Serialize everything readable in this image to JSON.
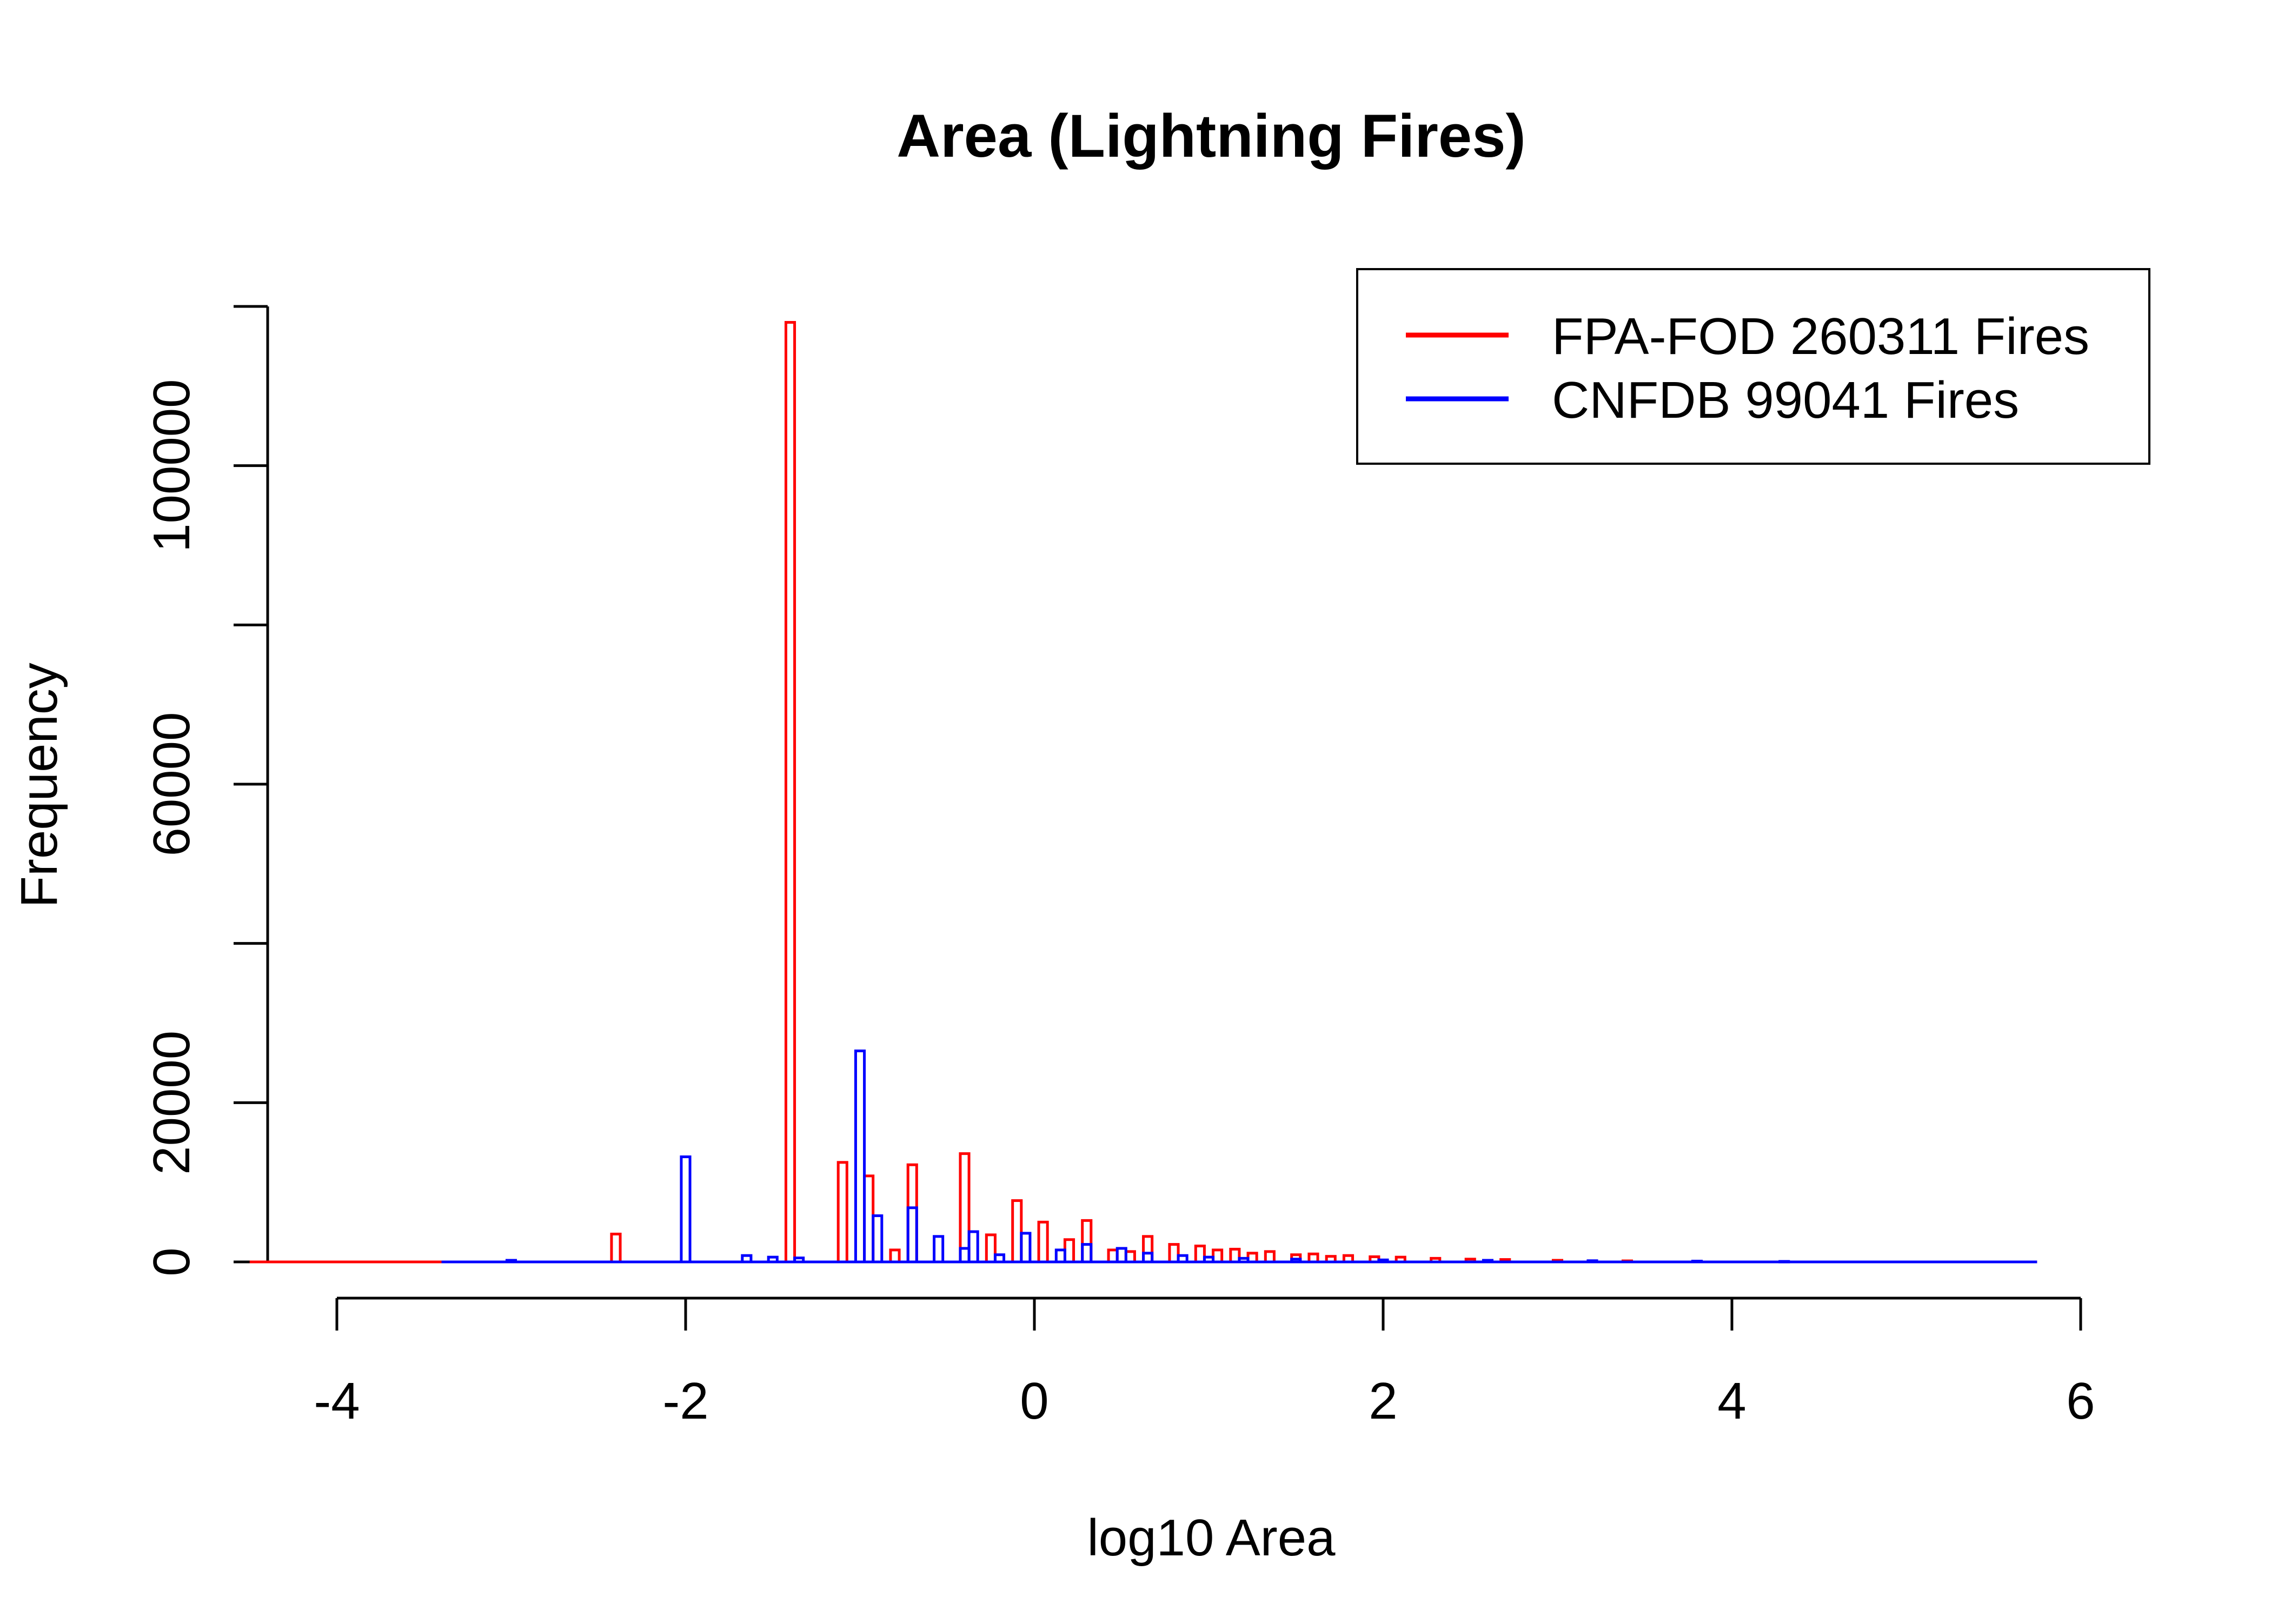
{
  "chart_data": {
    "type": "histogram",
    "title": "Area (Lightning Fires)",
    "xlabel": "log10 Area",
    "ylabel": "Frequency",
    "xlim": [
      -4.5,
      6
    ],
    "ylim": [
      0,
      120000
    ],
    "x_ticks": [
      {
        "value": -4,
        "label": "-4"
      },
      {
        "value": -2,
        "label": "-2"
      },
      {
        "value": 0,
        "label": "0"
      },
      {
        "value": 2,
        "label": "2"
      },
      {
        "value": 4,
        "label": "4"
      },
      {
        "value": 6,
        "label": "6"
      }
    ],
    "y_ticks": [
      {
        "value": 0,
        "label": "0"
      },
      {
        "value": 20000,
        "label": "20000"
      },
      {
        "value": 40000,
        "label": ""
      },
      {
        "value": 60000,
        "label": "60000"
      },
      {
        "value": 80000,
        "label": ""
      },
      {
        "value": 100000,
        "label": "100000"
      },
      {
        "value": 120000,
        "label": ""
      }
    ],
    "grid": false,
    "legend_position": "top-right",
    "bin_width": 0.05,
    "series": [
      {
        "name": "FPA-FOD 260311 Fires",
        "color": "#ff0000",
        "range": [
          -4.5,
          5.75
        ],
        "bars": [
          {
            "x": -2.4,
            "y": 3500
          },
          {
            "x": -1.4,
            "y": 118000
          },
          {
            "x": -1.1,
            "y": 12500
          },
          {
            "x": -0.95,
            "y": 10800
          },
          {
            "x": -0.8,
            "y": 1500
          },
          {
            "x": -0.7,
            "y": 12200
          },
          {
            "x": -0.4,
            "y": 13600
          },
          {
            "x": -0.25,
            "y": 3400
          },
          {
            "x": -0.1,
            "y": 7700
          },
          {
            "x": 0.05,
            "y": 5000
          },
          {
            "x": 0.2,
            "y": 2800
          },
          {
            "x": 0.3,
            "y": 5200
          },
          {
            "x": 0.45,
            "y": 1500
          },
          {
            "x": 0.55,
            "y": 1300
          },
          {
            "x": 0.65,
            "y": 3200
          },
          {
            "x": 0.8,
            "y": 2200
          },
          {
            "x": 0.95,
            "y": 2000
          },
          {
            "x": 1.05,
            "y": 1500
          },
          {
            "x": 1.15,
            "y": 1600
          },
          {
            "x": 1.25,
            "y": 1100
          },
          {
            "x": 1.35,
            "y": 1300
          },
          {
            "x": 1.5,
            "y": 900
          },
          {
            "x": 1.6,
            "y": 1000
          },
          {
            "x": 1.7,
            "y": 700
          },
          {
            "x": 1.8,
            "y": 800
          },
          {
            "x": 1.95,
            "y": 650
          },
          {
            "x": 2.1,
            "y": 600
          },
          {
            "x": 2.3,
            "y": 450
          },
          {
            "x": 2.5,
            "y": 350
          },
          {
            "x": 2.7,
            "y": 300
          },
          {
            "x": 3.0,
            "y": 200
          },
          {
            "x": 3.4,
            "y": 130
          },
          {
            "x": 3.8,
            "y": 80
          }
        ]
      },
      {
        "name": "CNFDB 99041 Fires",
        "color": "#0000ff",
        "range": [
          -3.4,
          5.75
        ],
        "bars": [
          {
            "x": -3.0,
            "y": 200
          },
          {
            "x": -2.0,
            "y": 13200
          },
          {
            "x": -1.65,
            "y": 800
          },
          {
            "x": -1.5,
            "y": 600
          },
          {
            "x": -1.35,
            "y": 500
          },
          {
            "x": -1.0,
            "y": 26500
          },
          {
            "x": -0.9,
            "y": 5800
          },
          {
            "x": -0.7,
            "y": 6800
          },
          {
            "x": -0.55,
            "y": 3200
          },
          {
            "x": -0.4,
            "y": 1700
          },
          {
            "x": -0.35,
            "y": 3800
          },
          {
            "x": -0.2,
            "y": 900
          },
          {
            "x": -0.05,
            "y": 3600
          },
          {
            "x": 0.15,
            "y": 1500
          },
          {
            "x": 0.3,
            "y": 2200
          },
          {
            "x": 0.5,
            "y": 1700
          },
          {
            "x": 0.65,
            "y": 1100
          },
          {
            "x": 0.85,
            "y": 800
          },
          {
            "x": 1.0,
            "y": 600
          },
          {
            "x": 1.2,
            "y": 450
          },
          {
            "x": 1.5,
            "y": 350
          },
          {
            "x": 2.0,
            "y": 250
          },
          {
            "x": 2.6,
            "y": 200
          },
          {
            "x": 3.2,
            "y": 150
          },
          {
            "x": 3.8,
            "y": 100
          },
          {
            "x": 4.3,
            "y": 60
          }
        ]
      }
    ]
  }
}
